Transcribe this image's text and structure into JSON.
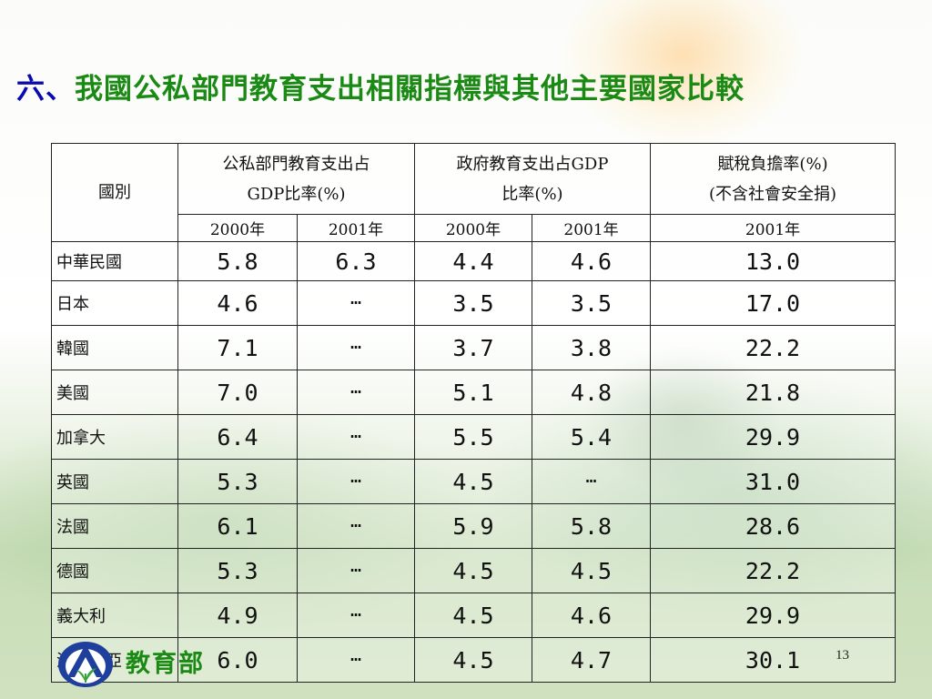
{
  "slide": {
    "title_prefix": "六、",
    "title_rest": "我國公私部門教育支出相關指標與其他主要國家比較",
    "page_number": "13"
  },
  "footer": {
    "brand": "教育部"
  },
  "table": {
    "col_country": "國別",
    "group1": [
      "公私部門教育支出占",
      "GDP比率(%)"
    ],
    "group2": [
      "政府教育支出占GDP",
      "比率(%)"
    ],
    "group3": [
      "賦稅負擔率(%)",
      "(不含社會安全捐)"
    ],
    "year_2000": "2000年",
    "year_2001": "2001年",
    "rows": [
      {
        "country": "中華民國",
        "a2000": "5.8",
        "a2001": "6.3",
        "b2000": "4.4",
        "b2001": "4.6",
        "tax": "13.0"
      },
      {
        "country": "日本",
        "a2000": "4.6",
        "a2001": "…",
        "b2000": "3.5",
        "b2001": "3.5",
        "tax": "17.0"
      },
      {
        "country": "韓國",
        "a2000": "7.1",
        "a2001": "…",
        "b2000": "3.7",
        "b2001": "3.8",
        "tax": "22.2"
      },
      {
        "country": "美國",
        "a2000": "7.0",
        "a2001": "…",
        "b2000": "5.1",
        "b2001": "4.8",
        "tax": "21.8"
      },
      {
        "country": "加拿大",
        "a2000": "6.4",
        "a2001": "…",
        "b2000": "5.5",
        "b2001": "5.4",
        "tax": "29.9"
      },
      {
        "country": "英國",
        "a2000": "5.3",
        "a2001": "…",
        "b2000": "4.5",
        "b2001": "…",
        "tax": "31.0"
      },
      {
        "country": "法國",
        "a2000": "6.1",
        "a2001": "…",
        "b2000": "5.9",
        "b2001": "5.8",
        "tax": "28.6"
      },
      {
        "country": "德國",
        "a2000": "5.3",
        "a2001": "…",
        "b2000": "4.5",
        "b2001": "4.5",
        "tax": "22.2"
      },
      {
        "country": "義大利",
        "a2000": "4.9",
        "a2001": "…",
        "b2000": "4.5",
        "b2001": "4.6",
        "tax": "29.9"
      },
      {
        "country": "澳大利亞",
        "a2000": "6.0",
        "a2001": "…",
        "b2000": "4.5",
        "b2001": "4.7",
        "tax": "30.1"
      }
    ]
  },
  "colors": {
    "title_prefix": "#0a0ab0",
    "title_text": "#1a8a14",
    "brand": "#1a8a14",
    "logo_blue": "#1f3f9c",
    "logo_green": "#3aa43a"
  }
}
